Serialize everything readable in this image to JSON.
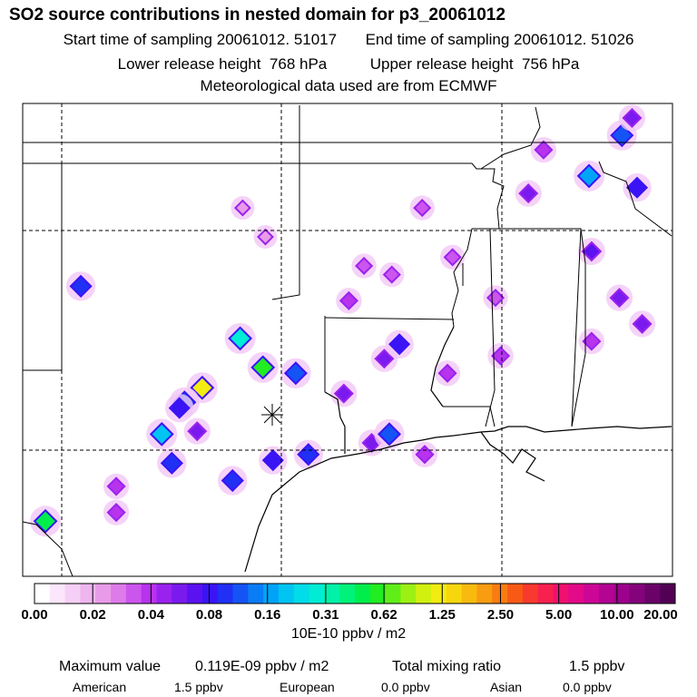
{
  "header": {
    "title": "SO2 source contributions in nested domain for p3_20061012",
    "start_label": "Start time of sampling",
    "start_value": "20061012. 51017",
    "end_label": "End time of sampling",
    "end_value": "20061012. 51026",
    "lower_label": "Lower release height",
    "lower_value": "768 hPa",
    "upper_label": "Upper release height",
    "upper_value": "756 hPa",
    "met_line": "Meteorological data used are from ECMWF"
  },
  "colorbar": {
    "tick_labels": [
      "0.00",
      "0.02",
      "0.04",
      "0.08",
      "0.16",
      "0.31",
      "0.62",
      "1.25",
      "2.50",
      "5.00",
      "10.00",
      "20.00"
    ],
    "colors": [
      "#ffffff",
      "#fbe6fb",
      "#f5cff5",
      "#eeb5ee",
      "#e89be8",
      "#dd7be8",
      "#cc55ee",
      "#b733ee",
      "#9a22ee",
      "#7a1aee",
      "#5a12f0",
      "#3a14f4",
      "#2030f4",
      "#1454f4",
      "#0a7cf6",
      "#00a4f6",
      "#00c4f2",
      "#00dcea",
      "#00ecd4",
      "#00f2a8",
      "#00f27a",
      "#00ee4c",
      "#22ec22",
      "#60ee18",
      "#9cf014",
      "#d2f010",
      "#f2ec10",
      "#f8d60e",
      "#f8ba0e",
      "#f89c10",
      "#f87c12",
      "#f85a16",
      "#f83a2e",
      "#f8204e",
      "#f01070",
      "#e20a88",
      "#cc0696",
      "#b40494",
      "#9c028c",
      "#84027c",
      "#6a0268",
      "#520054"
    ],
    "units": "10E-10 ppbv / m2"
  },
  "map": {
    "release_site_icon": "asterisk-marker-icon",
    "sources": [
      {
        "lon": -101.2,
        "lat": 38.2,
        "ppbv_e10": 0.02
      },
      {
        "lon": -100.3,
        "lat": 37.2,
        "ppbv_e10": 0.02
      },
      {
        "lon": -96.4,
        "lat": 36.2,
        "ppbv_e10": 0.03
      },
      {
        "lon": -94.1,
        "lat": 38.2,
        "ppbv_e10": 0.03
      },
      {
        "lon": -107.6,
        "lat": 35.5,
        "ppbv_e10": 0.1
      },
      {
        "lon": -101.3,
        "lat": 33.7,
        "ppbv_e10": 0.3
      },
      {
        "lon": -100.4,
        "lat": 32.7,
        "ppbv_e10": 0.62
      },
      {
        "lon": -102.8,
        "lat": 32.0,
        "ppbv_e10": 1.25
      },
      {
        "lon": -103.5,
        "lat": 31.5,
        "ppbv_e10": 0.12
      },
      {
        "lon": -103.7,
        "lat": 31.3,
        "ppbv_e10": 0.08
      },
      {
        "lon": -104.4,
        "lat": 30.4,
        "ppbv_e10": 0.2
      },
      {
        "lon": -103.0,
        "lat": 30.5,
        "ppbv_e10": 0.05
      },
      {
        "lon": -104.0,
        "lat": 29.4,
        "ppbv_e10": 0.1
      },
      {
        "lon": -106.2,
        "lat": 28.6,
        "ppbv_e10": 0.04
      },
      {
        "lon": -106.2,
        "lat": 27.7,
        "ppbv_e10": 0.04
      },
      {
        "lon": -109.0,
        "lat": 27.4,
        "ppbv_e10": 0.5
      },
      {
        "lon": -99.1,
        "lat": 32.5,
        "ppbv_e10": 0.12
      },
      {
        "lon": -101.6,
        "lat": 28.8,
        "ppbv_e10": 0.1
      },
      {
        "lon": -100.0,
        "lat": 29.5,
        "ppbv_e10": 0.08
      },
      {
        "lon": -98.6,
        "lat": 29.7,
        "ppbv_e10": 0.1
      },
      {
        "lon": -96.1,
        "lat": 30.1,
        "ppbv_e10": 0.05
      },
      {
        "lon": -94.0,
        "lat": 29.7,
        "ppbv_e10": 0.04
      },
      {
        "lon": -95.4,
        "lat": 30.4,
        "ppbv_e10": 0.12
      },
      {
        "lon": -97.2,
        "lat": 31.8,
        "ppbv_e10": 0.05
      },
      {
        "lon": -95.6,
        "lat": 33.0,
        "ppbv_e10": 0.05
      },
      {
        "lon": -95.0,
        "lat": 33.5,
        "ppbv_e10": 0.08
      },
      {
        "lon": -93.1,
        "lat": 32.5,
        "ppbv_e10": 0.04
      },
      {
        "lon": -91.2,
        "lat": 35.1,
        "ppbv_e10": 0.03
      },
      {
        "lon": -97.0,
        "lat": 35.0,
        "ppbv_e10": 0.04
      },
      {
        "lon": -95.3,
        "lat": 35.9,
        "ppbv_e10": 0.03
      },
      {
        "lon": -92.9,
        "lat": 36.5,
        "ppbv_e10": 0.03
      },
      {
        "lon": -91.0,
        "lat": 33.1,
        "ppbv_e10": 0.04
      },
      {
        "lon": -89.9,
        "lat": 38.7,
        "ppbv_e10": 0.05
      },
      {
        "lon": -89.3,
        "lat": 40.2,
        "ppbv_e10": 0.04
      },
      {
        "lon": -87.5,
        "lat": 39.3,
        "ppbv_e10": 0.15
      },
      {
        "lon": -85.6,
        "lat": 38.9,
        "ppbv_e10": 0.08
      },
      {
        "lon": -86.2,
        "lat": 40.7,
        "ppbv_e10": 0.12
      },
      {
        "lon": -85.8,
        "lat": 41.3,
        "ppbv_e10": 0.05
      },
      {
        "lon": -87.4,
        "lat": 36.7,
        "ppbv_e10": 0.06
      },
      {
        "lon": -86.3,
        "lat": 35.1,
        "ppbv_e10": 0.05
      },
      {
        "lon": -85.4,
        "lat": 34.2,
        "ppbv_e10": 0.05
      },
      {
        "lon": -87.4,
        "lat": 33.6,
        "ppbv_e10": 0.04
      }
    ]
  },
  "footer": {
    "max_label": "Maximum value",
    "max_value": "0.119E-09 ppbv / m2",
    "total_label": "Total mixing ratio",
    "total_value": "1.5 ppbv",
    "american_label": "American",
    "american_value": "1.5 ppbv",
    "european_label": "European",
    "european_value": "0.0 ppbv",
    "asian_label": "Asian",
    "asian_value": "0.0 ppbv"
  }
}
